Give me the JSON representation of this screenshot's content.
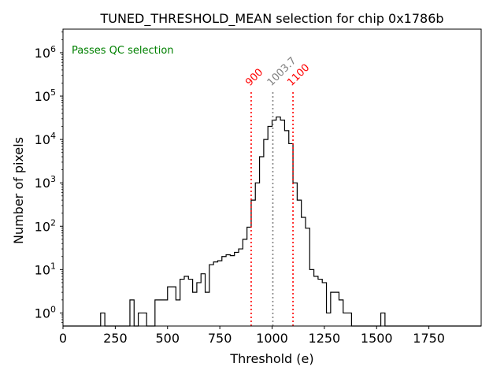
{
  "chart_data": {
    "type": "histogram",
    "title": "TUNED_THRESHOLD_MEAN selection for chip 0x1786b",
    "xlabel": "Threshold (e)",
    "ylabel": "Number of pixels",
    "x_scale": "linear",
    "y_scale": "log",
    "xlim": [
      0,
      2000
    ],
    "ylim": [
      0.5,
      3500000
    ],
    "x_ticks": [
      0,
      250,
      500,
      750,
      1000,
      1250,
      1500,
      1750
    ],
    "x_tick_labels": [
      "0",
      "250",
      "500",
      "750",
      "1000",
      "1250",
      "1500",
      "1750"
    ],
    "y_ticks": [
      1,
      10,
      100,
      1000,
      10000,
      100000,
      1000000
    ],
    "y_tick_base": "10",
    "y_tick_exponents": [
      "0",
      "1",
      "2",
      "3",
      "4",
      "5",
      "6"
    ],
    "grid": false,
    "bin_width": 20,
    "bin_edges_start": 0,
    "counts": [
      0,
      0,
      0,
      0,
      0,
      0,
      0,
      0,
      0,
      1,
      0,
      0,
      0,
      0,
      0,
      0,
      2,
      0,
      1,
      1,
      0,
      0,
      2,
      2,
      2,
      4,
      4,
      2,
      6,
      7,
      6,
      3,
      5,
      8,
      3,
      13,
      15,
      16,
      20,
      22,
      21,
      25,
      30,
      50,
      95,
      400,
      1000,
      4000,
      10000,
      20000,
      28000,
      33000,
      28000,
      16000,
      8000,
      1000,
      400,
      160,
      90,
      10,
      7,
      6,
      5,
      1,
      3,
      3,
      2,
      1,
      1,
      0,
      0,
      0,
      0,
      0,
      0,
      0,
      1,
      0,
      0,
      0,
      0,
      0,
      0,
      0,
      0,
      0,
      0,
      0,
      0,
      0,
      0,
      0,
      0,
      0,
      0,
      0,
      0,
      0,
      0,
      0
    ],
    "series_color": "#000000",
    "annotations": [
      {
        "text": "Passes QC selection",
        "color": "#008000",
        "position": "top-left"
      },
      {
        "x": 900,
        "label": "900",
        "color": "#ff0000",
        "style": "dotted"
      },
      {
        "x": 1003.7,
        "label": "1003.7",
        "color": "#808080",
        "style": "dotted"
      },
      {
        "x": 1100,
        "label": "1100",
        "color": "#ff0000",
        "style": "dotted"
      }
    ]
  }
}
